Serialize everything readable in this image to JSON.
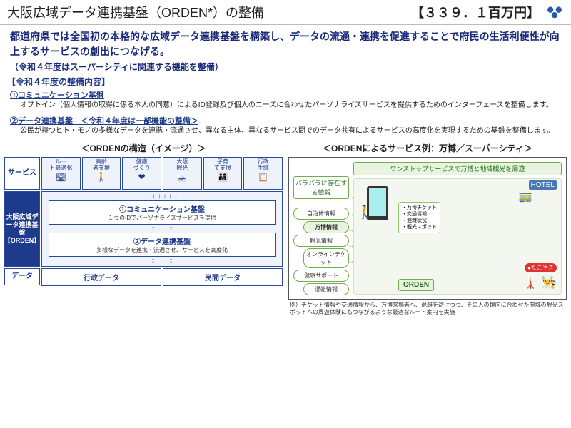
{
  "header": {
    "title": "大阪広域データ連携基盤（ORDEN*）の整備",
    "budget": "【３３９．１百万円】"
  },
  "intro": "都道府県では全国初の本格的な広域データ連携基盤を構築し、データの流通・連携を促進することで府民の生活利便性が向上するサービスの創出につなげる。",
  "subintro": "（令和４年度はスーパーシティに関連する機能を整備）",
  "section": "【令和４年度の整備内容】",
  "item1": {
    "h": "①コミュニケーション基盤",
    "body": "オプトイン（個人情報の取得に係る本人の同意）によるID登録及び個人のニーズに合わせたパーソナライズサービスを提供するためのインターフェースを整備します。"
  },
  "item2": {
    "h": "②データ連携基盤",
    "extra": "＜令和４年度は一部機能の整備＞",
    "body": "公民が持つヒト・モノの多様なデータを連携・流通させ、異なる主体、異なるサービス間でのデータ共有によるサービスの高度化を実現するための基盤を整備します。"
  },
  "left": {
    "title": "＜ORDENの構造（イメージ）＞",
    "labels": {
      "svc": "サービス",
      "orden": "大阪広域データ連携基盤【ORDEN】",
      "data": "データ"
    },
    "services": [
      {
        "t": "ルート最適化",
        "i": "🛣"
      },
      {
        "t": "高齢者支援",
        "i": "🚶"
      },
      {
        "t": "健康づくり",
        "i": "❤"
      },
      {
        "t": "大阪観光",
        "i": "🗻"
      },
      {
        "t": "子育て支援",
        "i": "👨‍👩‍👧"
      },
      {
        "t": "行政手続",
        "i": "📋"
      }
    ],
    "inner1": {
      "t": "①コミュニケーション基盤",
      "s": "１つのIDでパーソナライズサービスを提供"
    },
    "inner2": {
      "t": "②データ連携基盤",
      "s": "多様なデータを連携・流通させ、サービスを高度化"
    },
    "data": [
      "行政データ",
      "民間データ"
    ]
  },
  "right": {
    "title": "＜ORDENによるサービス例：万博／スーパーシティ＞",
    "scattered": "バラバラに存在する情報",
    "onestop": "ワンストップサービスで万博と地域観光を周遊",
    "bubbles": [
      "自治体情報",
      "万博情報",
      "観光情報",
      "オンラインチケット",
      "健康サポート",
      "混雑情報"
    ],
    "list": [
      "・万博チケット",
      "・交通情報",
      "・混雑状況",
      "・観光スポット"
    ],
    "orden": "ORDEN",
    "hotel": "HOTEL",
    "tako": "●たこやき",
    "caption": "例）チケット情報や交通情報から、万博来場者へ、混雑を避けつつ、その人の趣向に合わせた府域の観光スポットへの周遊体験にもつながるような最適なルート案内を実施"
  },
  "colors": {
    "navy": "#1e3a8a",
    "green": "#6fae4a"
  }
}
